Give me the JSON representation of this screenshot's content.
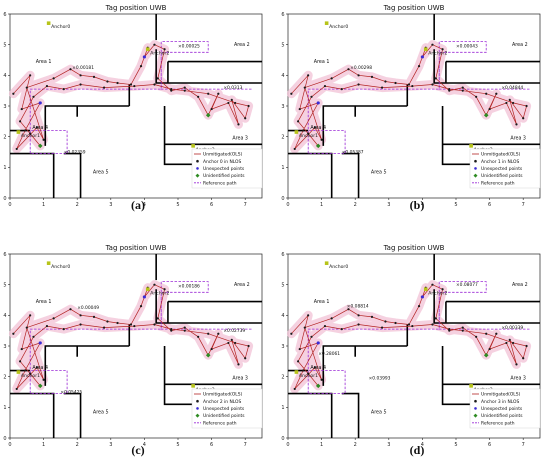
{
  "chart_data": [
    {
      "type": "line",
      "panel_label": "(a)",
      "title": "Tag position UWB",
      "xlim": [
        0,
        7.5
      ],
      "ylim": [
        0,
        6
      ],
      "xticks": [
        0,
        1,
        2,
        3,
        4,
        5,
        6,
        7
      ],
      "yticks": [
        0,
        1,
        2,
        3,
        4,
        5,
        6
      ],
      "anchors": [
        {
          "name": "Anchor0",
          "x": 1.15,
          "y": 5.7
        },
        {
          "name": "Anchor1",
          "x": 0.25,
          "y": 2.15
        },
        {
          "name": "Anchor2",
          "x": 4.1,
          "y": 4.85
        },
        {
          "name": "Anchor3",
          "x": 5.45,
          "y": 1.7
        }
      ],
      "areas": [
        {
          "name": "Area 1",
          "x": 1.0,
          "y": 4.4
        },
        {
          "name": "Area 2",
          "x": 6.9,
          "y": 4.95
        },
        {
          "name": "Area 3",
          "x": 6.85,
          "y": 1.9
        },
        {
          "name": "Area 4",
          "x": 0.9,
          "y": 2.25
        },
        {
          "name": "Area 5",
          "x": 2.7,
          "y": 0.8
        }
      ],
      "error_labels": [
        {
          "text": "0.00181",
          "x": 1.85,
          "y": 4.2
        },
        {
          "text": "0.00025",
          "x": 5.0,
          "y": 4.9
        },
        {
          "text": "0.0313",
          "x": 6.35,
          "y": 3.55
        },
        {
          "text": "0.02359",
          "x": 1.6,
          "y": 1.45
        }
      ],
      "legend": [
        "Unmitigated(OLS)",
        "Anchor 0 in NLOS",
        "Unexpected points",
        "Unidentified points",
        "Reference path"
      ],
      "series": [
        {
          "name": "Unmitigated(OLS)",
          "x": [
            0.1,
            0.6,
            0.35,
            0.9,
            0.45,
            0.2,
            0.8,
            1.0,
            0.5,
            1.3,
            1.8,
            2.1,
            2.5,
            2.9,
            3.2,
            3.6,
            3.9,
            4.1,
            4.0,
            4.3,
            4.6,
            4.4,
            4.8,
            5.2,
            5.6,
            5.9,
            6.2,
            6.0,
            6.5,
            6.8,
            6.6,
            7.0,
            7.1,
            6.7,
            5.9,
            5.2,
            4.8,
            4.3,
            3.7,
            2.8,
            2.1,
            1.6,
            1.1,
            0.7,
            0.3,
            0.6,
            0.9
          ],
          "y": [
            3.4,
            4.0,
            2.9,
            3.1,
            2.2,
            1.6,
            2.3,
            1.9,
            3.6,
            3.9,
            4.2,
            4.0,
            3.95,
            3.8,
            3.75,
            3.7,
            4.3,
            4.9,
            4.6,
            5.0,
            4.85,
            3.9,
            3.5,
            3.6,
            3.3,
            2.7,
            3.4,
            2.9,
            3.1,
            2.4,
            3.2,
            2.6,
            3.0,
            3.1,
            3.4,
            3.5,
            3.55,
            3.7,
            3.65,
            3.6,
            3.7,
            3.55,
            3.65,
            3.3,
            2.5,
            2.1,
            1.7
          ]
        },
        {
          "name": "Reference path",
          "x": [
            0.6,
            0.6,
            1.7,
            1.7,
            0.6,
            0.6,
            4.5,
            4.5,
            5.9,
            5.9,
            4.5,
            4.5,
            7.2
          ],
          "y": [
            1.45,
            2.2,
            2.2,
            1.45,
            1.45,
            3.55,
            3.55,
            5.1,
            5.1,
            4.75,
            4.75,
            3.55,
            3.55
          ]
        }
      ]
    },
    {
      "type": "line",
      "panel_label": "(b)",
      "title": "Tag position UWB",
      "xlim": [
        0,
        7.5
      ],
      "ylim": [
        0,
        6
      ],
      "xticks": [
        0,
        1,
        2,
        3,
        4,
        5,
        6,
        7
      ],
      "yticks": [
        0,
        1,
        2,
        3,
        4,
        5,
        6
      ],
      "anchors": [
        {
          "name": "Anchor0",
          "x": 1.15,
          "y": 5.7
        },
        {
          "name": "Anchor1",
          "x": 0.25,
          "y": 2.15
        },
        {
          "name": "Anchor2",
          "x": 4.1,
          "y": 4.85
        },
        {
          "name": "Anchor3",
          "x": 5.45,
          "y": 1.7
        }
      ],
      "areas": [
        {
          "name": "Area 1",
          "x": 1.0,
          "y": 4.4
        },
        {
          "name": "Area 2",
          "x": 6.9,
          "y": 4.95
        },
        {
          "name": "Area 3",
          "x": 6.85,
          "y": 1.9
        },
        {
          "name": "Area 4",
          "x": 0.9,
          "y": 2.25
        },
        {
          "name": "Area 5",
          "x": 2.7,
          "y": 0.8
        }
      ],
      "error_labels": [
        {
          "text": "0.00298",
          "x": 1.85,
          "y": 4.2
        },
        {
          "text": "0.00043",
          "x": 5.0,
          "y": 4.9
        },
        {
          "text": "0.04844",
          "x": 6.35,
          "y": 3.55
        },
        {
          "text": "0.05387",
          "x": 1.6,
          "y": 1.45
        }
      ],
      "legend": [
        "Unmitigated(OLS)",
        "Anchor 1 in NLOS",
        "Unexpected points",
        "Unidentified points",
        "Reference path"
      ],
      "series": [
        {
          "name": "Unmitigated(OLS)",
          "x": [
            0.1,
            0.6,
            0.35,
            0.9,
            0.45,
            0.2,
            0.8,
            1.0,
            0.5,
            1.3,
            1.8,
            2.1,
            2.5,
            2.9,
            3.2,
            3.6,
            3.9,
            4.1,
            4.0,
            4.3,
            4.6,
            4.4,
            4.8,
            5.2,
            5.6,
            5.9,
            6.2,
            6.0,
            6.5,
            6.8,
            6.6,
            7.0,
            7.1,
            6.7,
            5.9,
            5.2,
            4.8,
            4.3,
            3.7,
            2.8,
            2.1,
            1.6,
            1.1,
            0.7,
            0.3,
            0.6,
            0.9
          ],
          "y": [
            3.4,
            4.0,
            2.9,
            3.1,
            2.2,
            1.6,
            2.3,
            1.9,
            3.6,
            3.9,
            4.2,
            4.0,
            3.95,
            3.8,
            3.75,
            3.7,
            4.3,
            4.9,
            4.6,
            5.0,
            4.85,
            3.9,
            3.5,
            3.6,
            3.3,
            2.7,
            3.4,
            2.9,
            3.1,
            2.4,
            3.2,
            2.6,
            3.0,
            3.1,
            3.4,
            3.5,
            3.55,
            3.7,
            3.65,
            3.6,
            3.7,
            3.55,
            3.65,
            3.3,
            2.5,
            2.1,
            1.7
          ]
        },
        {
          "name": "Reference path",
          "x": [
            0.6,
            0.6,
            1.7,
            1.7,
            0.6,
            0.6,
            4.5,
            4.5,
            5.9,
            5.9,
            4.5,
            4.5,
            7.2
          ],
          "y": [
            1.45,
            2.2,
            2.2,
            1.45,
            1.45,
            3.55,
            3.55,
            5.1,
            5.1,
            4.75,
            4.75,
            3.55,
            3.55
          ]
        }
      ]
    },
    {
      "type": "line",
      "panel_label": "(c)",
      "title": "Tag position UWB",
      "xlim": [
        0,
        7.5
      ],
      "ylim": [
        0,
        6
      ],
      "xticks": [
        0,
        1,
        2,
        3,
        4,
        5,
        6,
        7
      ],
      "yticks": [
        0,
        1,
        2,
        3,
        4,
        5,
        6
      ],
      "anchors": [
        {
          "name": "Anchor0",
          "x": 1.15,
          "y": 5.7
        },
        {
          "name": "Anchor1",
          "x": 0.25,
          "y": 2.15
        },
        {
          "name": "Anchor2",
          "x": 4.1,
          "y": 4.85
        },
        {
          "name": "Anchor3",
          "x": 5.45,
          "y": 1.7
        }
      ],
      "areas": [
        {
          "name": "Area 1",
          "x": 1.0,
          "y": 4.4
        },
        {
          "name": "Area 2",
          "x": 6.9,
          "y": 4.95
        },
        {
          "name": "Area 3",
          "x": 6.85,
          "y": 1.9
        },
        {
          "name": "Area 4",
          "x": 0.9,
          "y": 2.25
        },
        {
          "name": "Area 5",
          "x": 2.7,
          "y": 0.8
        }
      ],
      "error_labels": [
        {
          "text": "0.00049",
          "x": 2.0,
          "y": 4.2
        },
        {
          "text": "0.00186",
          "x": 5.0,
          "y": 4.9
        },
        {
          "text": "0.02739",
          "x": 6.35,
          "y": 3.45
        },
        {
          "text": "0.05425",
          "x": 1.5,
          "y": 1.45
        }
      ],
      "legend": [
        "Unmitigated(OLS)",
        "Anchor 2 in NLOS",
        "Unexpected points",
        "Unidentified points",
        "Reference path"
      ],
      "series": [
        {
          "name": "Unmitigated(OLS)",
          "x": [
            0.1,
            0.6,
            0.35,
            0.9,
            0.45,
            0.2,
            0.8,
            1.0,
            0.5,
            1.3,
            1.8,
            2.1,
            2.5,
            2.9,
            3.2,
            3.6,
            3.9,
            4.1,
            4.0,
            4.3,
            4.6,
            4.4,
            4.8,
            5.2,
            5.6,
            5.9,
            6.2,
            6.0,
            6.5,
            6.8,
            6.6,
            7.0,
            7.1,
            6.7,
            5.9,
            5.2,
            4.8,
            4.3,
            3.7,
            2.8,
            2.1,
            1.6,
            1.1,
            0.7,
            0.3,
            0.6,
            0.9
          ],
          "y": [
            3.4,
            4.0,
            2.9,
            3.1,
            2.2,
            1.6,
            2.3,
            1.9,
            3.6,
            3.9,
            4.2,
            4.0,
            3.95,
            3.8,
            3.75,
            3.7,
            4.3,
            4.9,
            4.6,
            5.0,
            4.85,
            3.9,
            3.5,
            3.6,
            3.3,
            2.7,
            3.4,
            2.9,
            3.1,
            2.4,
            3.2,
            2.6,
            3.0,
            3.1,
            3.4,
            3.5,
            3.55,
            3.7,
            3.65,
            3.6,
            3.7,
            3.55,
            3.65,
            3.3,
            2.5,
            2.1,
            1.7
          ]
        },
        {
          "name": "Reference path",
          "x": [
            0.6,
            0.6,
            1.7,
            1.7,
            0.6,
            0.6,
            4.5,
            4.5,
            5.9,
            5.9,
            4.5,
            4.5,
            7.2
          ],
          "y": [
            1.45,
            2.2,
            2.2,
            1.45,
            1.45,
            3.55,
            3.55,
            5.1,
            5.1,
            4.75,
            4.75,
            3.55,
            3.55
          ]
        }
      ]
    },
    {
      "type": "line",
      "panel_label": "(d)",
      "title": "Tag position UWB",
      "xlim": [
        0,
        7.5
      ],
      "ylim": [
        0,
        6
      ],
      "xticks": [
        0,
        1,
        2,
        3,
        4,
        5,
        6,
        7
      ],
      "yticks": [
        0,
        1,
        2,
        3,
        4,
        5,
        6
      ],
      "anchors": [
        {
          "name": "Anchor0",
          "x": 1.15,
          "y": 5.7
        },
        {
          "name": "Anchor1",
          "x": 0.25,
          "y": 2.15
        },
        {
          "name": "Anchor2",
          "x": 4.1,
          "y": 4.85
        },
        {
          "name": "Anchor3",
          "x": 5.45,
          "y": 1.7
        }
      ],
      "areas": [
        {
          "name": "Area 1",
          "x": 1.0,
          "y": 4.4
        },
        {
          "name": "Area 2",
          "x": 6.9,
          "y": 4.95
        },
        {
          "name": "Area 3",
          "x": 6.85,
          "y": 1.9
        },
        {
          "name": "Area 4",
          "x": 0.9,
          "y": 2.25
        },
        {
          "name": "Area 5",
          "x": 2.7,
          "y": 0.8
        }
      ],
      "error_labels": [
        {
          "text": "0.08814",
          "x": 1.75,
          "y": 4.25
        },
        {
          "text": "0.08077",
          "x": 5.0,
          "y": 4.95
        },
        {
          "text": "0.00339",
          "x": 6.35,
          "y": 3.55
        },
        {
          "text": "0.28061",
          "x": 0.9,
          "y": 2.7
        },
        {
          "text": "0.03993",
          "x": 2.4,
          "y": 1.9
        }
      ],
      "legend": [
        "Unmitigated(OLS)",
        "Anchor 3 in NLOS",
        "Unexpected points",
        "Unidentified points",
        "Reference path"
      ],
      "series": [
        {
          "name": "Unmitigated(OLS)",
          "x": [
            0.1,
            0.6,
            0.35,
            0.9,
            0.45,
            0.2,
            0.8,
            1.0,
            0.5,
            1.3,
            1.8,
            2.1,
            2.5,
            2.9,
            3.2,
            3.6,
            3.9,
            4.1,
            4.0,
            4.3,
            4.6,
            4.4,
            4.8,
            5.2,
            5.6,
            5.9,
            6.2,
            6.0,
            6.5,
            6.8,
            6.6,
            7.0,
            7.1,
            6.7,
            5.9,
            5.2,
            4.8,
            4.3,
            3.7,
            2.8,
            2.1,
            1.6,
            1.1,
            0.7,
            0.3,
            0.6,
            0.9
          ],
          "y": [
            3.4,
            4.0,
            2.9,
            3.1,
            2.2,
            1.6,
            2.3,
            1.9,
            3.6,
            3.9,
            4.2,
            4.0,
            3.95,
            3.8,
            3.75,
            3.7,
            4.3,
            4.9,
            4.6,
            5.0,
            4.85,
            3.9,
            3.5,
            3.6,
            3.3,
            2.7,
            3.4,
            2.9,
            3.1,
            2.4,
            3.2,
            2.6,
            3.0,
            3.1,
            3.4,
            3.5,
            3.55,
            3.7,
            3.65,
            3.6,
            3.7,
            3.55,
            3.65,
            3.3,
            2.5,
            2.1,
            1.7
          ]
        },
        {
          "name": "Reference path",
          "x": [
            0.6,
            0.6,
            1.7,
            1.7,
            0.6,
            0.6,
            4.5,
            4.5,
            5.9,
            5.9,
            4.5,
            4.5,
            7.2
          ],
          "y": [
            1.45,
            2.2,
            2.2,
            1.45,
            1.45,
            3.55,
            3.55,
            5.1,
            5.1,
            4.75,
            4.75,
            3.55,
            3.55
          ]
        }
      ]
    }
  ],
  "walls": {
    "a": [
      [
        [
          0,
          1.45
        ],
        [
          1.3,
          1.45
        ],
        [
          1.3,
          0
        ]
      ],
      [
        [
          1.6,
          1.45
        ],
        [
          2.1,
          1.45
        ],
        [
          2.1,
          0
        ]
      ],
      [
        [
          1.05,
          1.7
        ],
        [
          1.05,
          3.0
        ],
        [
          3.55,
          3.0
        ]
      ],
      [
        [
          0,
          2.2
        ],
        [
          0.6,
          2.2
        ]
      ],
      [
        [
          2.0,
          2.65
        ],
        [
          2.0,
          3.0
        ]
      ],
      [
        [
          3.55,
          3.0
        ],
        [
          3.55,
          3.7
        ]
      ],
      [
        [
          4.35,
          4.85
        ],
        [
          4.35,
          3.75
        ],
        [
          7.5,
          3.75
        ]
      ],
      [
        [
          4.35,
          5.15
        ],
        [
          4.35,
          6.0
        ]
      ],
      [
        [
          4.7,
          4.45
        ],
        [
          7.5,
          4.45
        ]
      ],
      [
        [
          4.7,
          3.75
        ],
        [
          4.7,
          4.45
        ]
      ],
      [
        [
          4.6,
          3.0
        ],
        [
          4.6,
          1.1
        ],
        [
          7.5,
          1.1
        ]
      ],
      [
        [
          4.6,
          1.75
        ],
        [
          7.5,
          1.75
        ]
      ]
    ]
  },
  "colors": {
    "trajectory": "#b22222",
    "dots": "#1a1a1a",
    "unexpected": "#3b2bd6",
    "unidentified": "#2e8b22",
    "reference": "#9b2bd6",
    "halo": "#f3c6d8",
    "anchor": "#b7c41a",
    "wall": "#000000"
  }
}
